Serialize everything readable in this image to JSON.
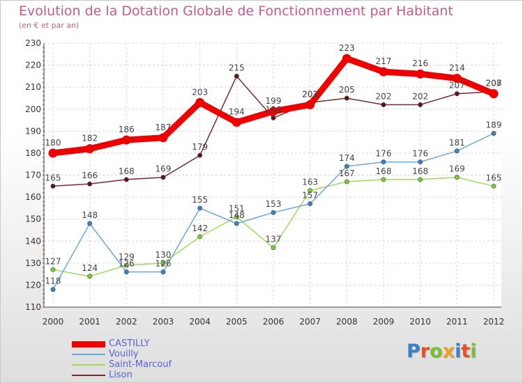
{
  "title": "Evolution de la Dotation Globale de Fonctionnement par Habitant",
  "subtitle": "(en € et par an)",
  "logo": {
    "text": "Proxiti",
    "letter_colors": [
      "#3b82c4",
      "#e8502a",
      "#7bbf2e",
      "#f0a020",
      "#3b82c4",
      "#e8502a",
      "#7bbf2e"
    ]
  },
  "chart_data": {
    "type": "line",
    "title": "Evolution de la Dotation Globale de Fonctionnement par Habitant",
    "subtitle": "(en € et par an)",
    "x": [
      "2000",
      "2001",
      "2002",
      "2003",
      "2004",
      "2005",
      "2006",
      "2007",
      "2008",
      "2009",
      "2010",
      "2011",
      "2012"
    ],
    "ylim": [
      110,
      230
    ],
    "yticks": [
      110,
      120,
      130,
      140,
      150,
      160,
      170,
      180,
      190,
      200,
      210,
      220,
      230
    ],
    "grid": true,
    "legend_position": "bottom-left",
    "series": [
      {
        "name": "Lison",
        "color": "#7a2a2a",
        "marker_color": "#5e1414",
        "values": [
          165,
          166,
          168,
          169,
          179,
          215,
          196,
          203,
          205,
          202,
          202,
          207,
          208
        ],
        "labels": [
          "165",
          "166",
          "168",
          "169",
          "179",
          "215",
          "196",
          "203",
          "205",
          "202",
          "202",
          "207",
          "208"
        ]
      },
      {
        "name": "Saint-Marcouf",
        "color": "#9ddb5c",
        "marker_color": "#7cc83a",
        "values": [
          127,
          124,
          129,
          130,
          142,
          151,
          137,
          163,
          167,
          168,
          168,
          169,
          165
        ],
        "labels": [
          "127",
          "124",
          "129",
          "130",
          "142",
          "151",
          "137",
          "163",
          "167",
          "168",
          "168",
          "169",
          "165"
        ]
      },
      {
        "name": "Vouilly",
        "color": "#6aa6d8",
        "marker_color": "#3a82c4",
        "values": [
          118,
          148,
          126,
          126,
          155,
          148,
          153,
          157,
          174,
          176,
          176,
          181,
          189
        ],
        "labels": [
          "118",
          "148",
          "126",
          "126",
          "155",
          "148",
          "153",
          "157",
          "174",
          "176",
          "176",
          "181",
          "189"
        ]
      },
      {
        "name": "CASTILLY",
        "color": "#ee0000",
        "marker_color": "#ee0000",
        "values": [
          180,
          182,
          186,
          187,
          203,
          194,
          199,
          202,
          223,
          217,
          216,
          214,
          207
        ],
        "labels": [
          "180",
          "182",
          "186",
          "187",
          "203",
          "194",
          "199",
          "202",
          "223",
          "217",
          "216",
          "214",
          "207"
        ]
      }
    ],
    "legend": [
      "CASTILLY",
      "Vouilly",
      "Saint-Marcouf",
      "Lison"
    ]
  }
}
